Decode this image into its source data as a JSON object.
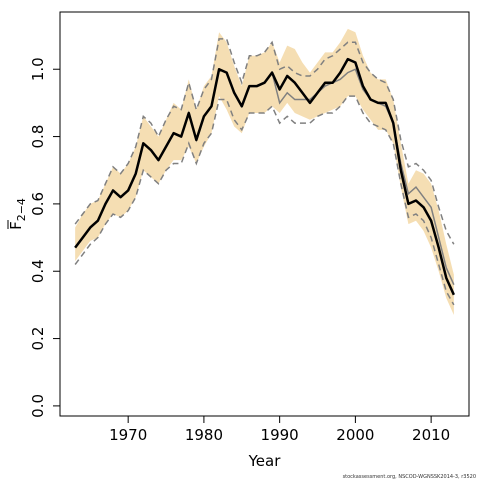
{
  "chart_data": {
    "type": "line",
    "xlabel": "Year",
    "ylabel": {
      "main": "F",
      "subscript": "2−4"
    },
    "xlim": [
      1961,
      2015
    ],
    "ylim": [
      -0.03,
      1.17
    ],
    "xticks": [
      1970,
      1980,
      1990,
      2000,
      2010
    ],
    "yticks": [
      0.0,
      0.2,
      0.4,
      0.6,
      0.8,
      1.0
    ],
    "xtick_labels": [
      "1970",
      "1980",
      "1990",
      "2000",
      "2010"
    ],
    "ytick_labels": [
      "0.0",
      "0.2",
      "0.4",
      "0.6",
      "0.8",
      "1.0"
    ],
    "grid": false,
    "legend": "none",
    "colors": {
      "band": "#f5deb3",
      "main": "#000000",
      "previous": "#808080"
    },
    "x": [
      1963,
      1964,
      1965,
      1966,
      1967,
      1968,
      1969,
      1970,
      1971,
      1972,
      1973,
      1974,
      1975,
      1976,
      1977,
      1978,
      1979,
      1980,
      1981,
      1982,
      1983,
      1984,
      1985,
      1986,
      1987,
      1988,
      1989,
      1990,
      1991,
      1992,
      1993,
      1994,
      1995,
      1996,
      1997,
      1998,
      1999,
      2000,
      2001,
      2002,
      2003,
      2004,
      2005,
      2006,
      2007,
      2008,
      2009,
      2010,
      2011,
      2012,
      2013
    ],
    "series": [
      {
        "role": "band_lower",
        "values": [
          0.43,
          0.46,
          0.49,
          0.5,
          0.54,
          0.57,
          0.56,
          0.58,
          0.62,
          0.7,
          0.68,
          0.66,
          0.7,
          0.73,
          0.73,
          0.77,
          0.72,
          0.77,
          0.81,
          0.92,
          0.88,
          0.83,
          0.81,
          0.87,
          0.87,
          0.87,
          0.89,
          0.87,
          0.9,
          0.87,
          0.86,
          0.85,
          0.86,
          0.87,
          0.88,
          0.89,
          0.92,
          0.92,
          0.88,
          0.85,
          0.82,
          0.82,
          0.78,
          0.65,
          0.54,
          0.55,
          0.52,
          0.47,
          0.4,
          0.32,
          0.27
        ]
      },
      {
        "role": "band_upper",
        "values": [
          0.53,
          0.57,
          0.6,
          0.61,
          0.66,
          0.71,
          0.69,
          0.72,
          0.77,
          0.86,
          0.83,
          0.8,
          0.85,
          0.9,
          0.88,
          0.97,
          0.88,
          0.95,
          0.98,
          1.11,
          1.08,
          1.01,
          0.95,
          1.04,
          1.04,
          1.05,
          1.08,
          1.02,
          1.07,
          1.06,
          1.02,
          0.99,
          1.02,
          1.05,
          1.05,
          1.08,
          1.12,
          1.11,
          1.04,
          0.99,
          0.97,
          0.97,
          0.91,
          0.78,
          0.66,
          0.7,
          0.69,
          0.66,
          0.58,
          0.48,
          0.39
        ]
      },
      {
        "role": "estimate",
        "values": [
          0.47,
          0.5,
          0.53,
          0.55,
          0.6,
          0.64,
          0.62,
          0.64,
          0.69,
          0.78,
          0.76,
          0.73,
          0.77,
          0.81,
          0.8,
          0.87,
          0.79,
          0.86,
          0.89,
          1.0,
          0.99,
          0.93,
          0.89,
          0.95,
          0.95,
          0.96,
          0.99,
          0.94,
          0.98,
          0.96,
          0.93,
          0.9,
          0.93,
          0.96,
          0.96,
          0.99,
          1.03,
          1.02,
          0.95,
          0.91,
          0.9,
          0.9,
          0.84,
          0.7,
          0.6,
          0.61,
          0.59,
          0.55,
          0.47,
          0.38,
          0.33
        ]
      },
      {
        "role": "previous_estimate",
        "values": [
          0.47,
          0.5,
          0.53,
          0.55,
          0.6,
          0.64,
          0.62,
          0.64,
          0.69,
          0.78,
          0.76,
          0.73,
          0.77,
          0.81,
          0.8,
          0.87,
          0.79,
          0.86,
          0.89,
          1.0,
          0.99,
          0.93,
          0.89,
          0.95,
          0.95,
          0.96,
          0.99,
          0.9,
          0.93,
          0.91,
          0.91,
          0.91,
          0.93,
          0.95,
          0.96,
          0.97,
          0.99,
          1.0,
          0.94,
          0.91,
          0.9,
          0.89,
          0.84,
          0.72,
          0.63,
          0.65,
          0.62,
          0.59,
          0.5,
          0.41,
          0.36
        ]
      },
      {
        "role": "previous_lower",
        "values": [
          0.42,
          0.45,
          0.48,
          0.5,
          0.54,
          0.57,
          0.56,
          0.58,
          0.62,
          0.7,
          0.68,
          0.66,
          0.7,
          0.72,
          0.72,
          0.78,
          0.72,
          0.78,
          0.81,
          0.91,
          0.91,
          0.85,
          0.82,
          0.87,
          0.87,
          0.87,
          0.89,
          0.84,
          0.86,
          0.84,
          0.84,
          0.84,
          0.86,
          0.87,
          0.87,
          0.89,
          0.92,
          0.92,
          0.87,
          0.84,
          0.83,
          0.82,
          0.78,
          0.66,
          0.56,
          0.57,
          0.55,
          0.5,
          0.42,
          0.34,
          0.3
        ]
      },
      {
        "role": "previous_upper",
        "values": [
          0.54,
          0.57,
          0.6,
          0.61,
          0.66,
          0.71,
          0.69,
          0.72,
          0.77,
          0.86,
          0.84,
          0.8,
          0.85,
          0.89,
          0.88,
          0.96,
          0.88,
          0.94,
          0.97,
          1.09,
          1.09,
          1.02,
          0.96,
          1.04,
          1.04,
          1.05,
          1.08,
          1.0,
          1.01,
          0.99,
          0.98,
          0.98,
          1.0,
          1.03,
          1.04,
          1.06,
          1.08,
          1.08,
          1.02,
          0.99,
          0.97,
          0.96,
          0.91,
          0.79,
          0.71,
          0.72,
          0.7,
          0.67,
          0.59,
          0.52,
          0.48
        ]
      }
    ]
  },
  "footer_note": "stockassessment.org, NSCOD-WGNSSK2014-3, r3520"
}
